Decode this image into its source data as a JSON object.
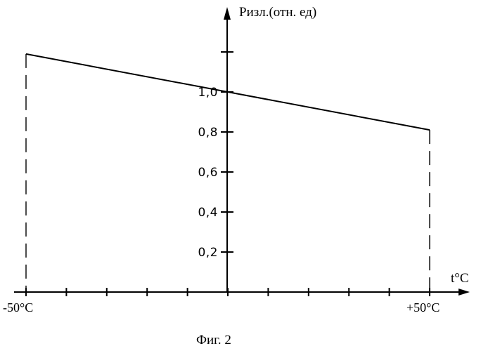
{
  "chart_data": {
    "type": "line",
    "ylabel": "Pизл.(отн. ед)",
    "xlabel": "t°C",
    "caption": "Фиг. 2",
    "xlim": [
      -50,
      50
    ],
    "ylim": [
      0,
      1.2
    ],
    "x_tick_labels": [
      "-50°C",
      "+50°C"
    ],
    "y_tick_labels": [
      "0,2",
      "0,4",
      "0,6",
      "0,8",
      "1,0"
    ],
    "y_ticks": [
      0.2,
      0.4,
      0.6,
      0.8,
      1.0,
      1.2
    ],
    "x_ticks": [
      -50,
      -40,
      -30,
      -20,
      -10,
      0,
      10,
      20,
      30,
      40,
      50
    ],
    "grid": false,
    "series": [
      {
        "x": [
          -50,
          50
        ],
        "y": [
          1.19,
          0.81
        ]
      }
    ],
    "drop_lines_at_x": [
      -50,
      50
    ]
  }
}
